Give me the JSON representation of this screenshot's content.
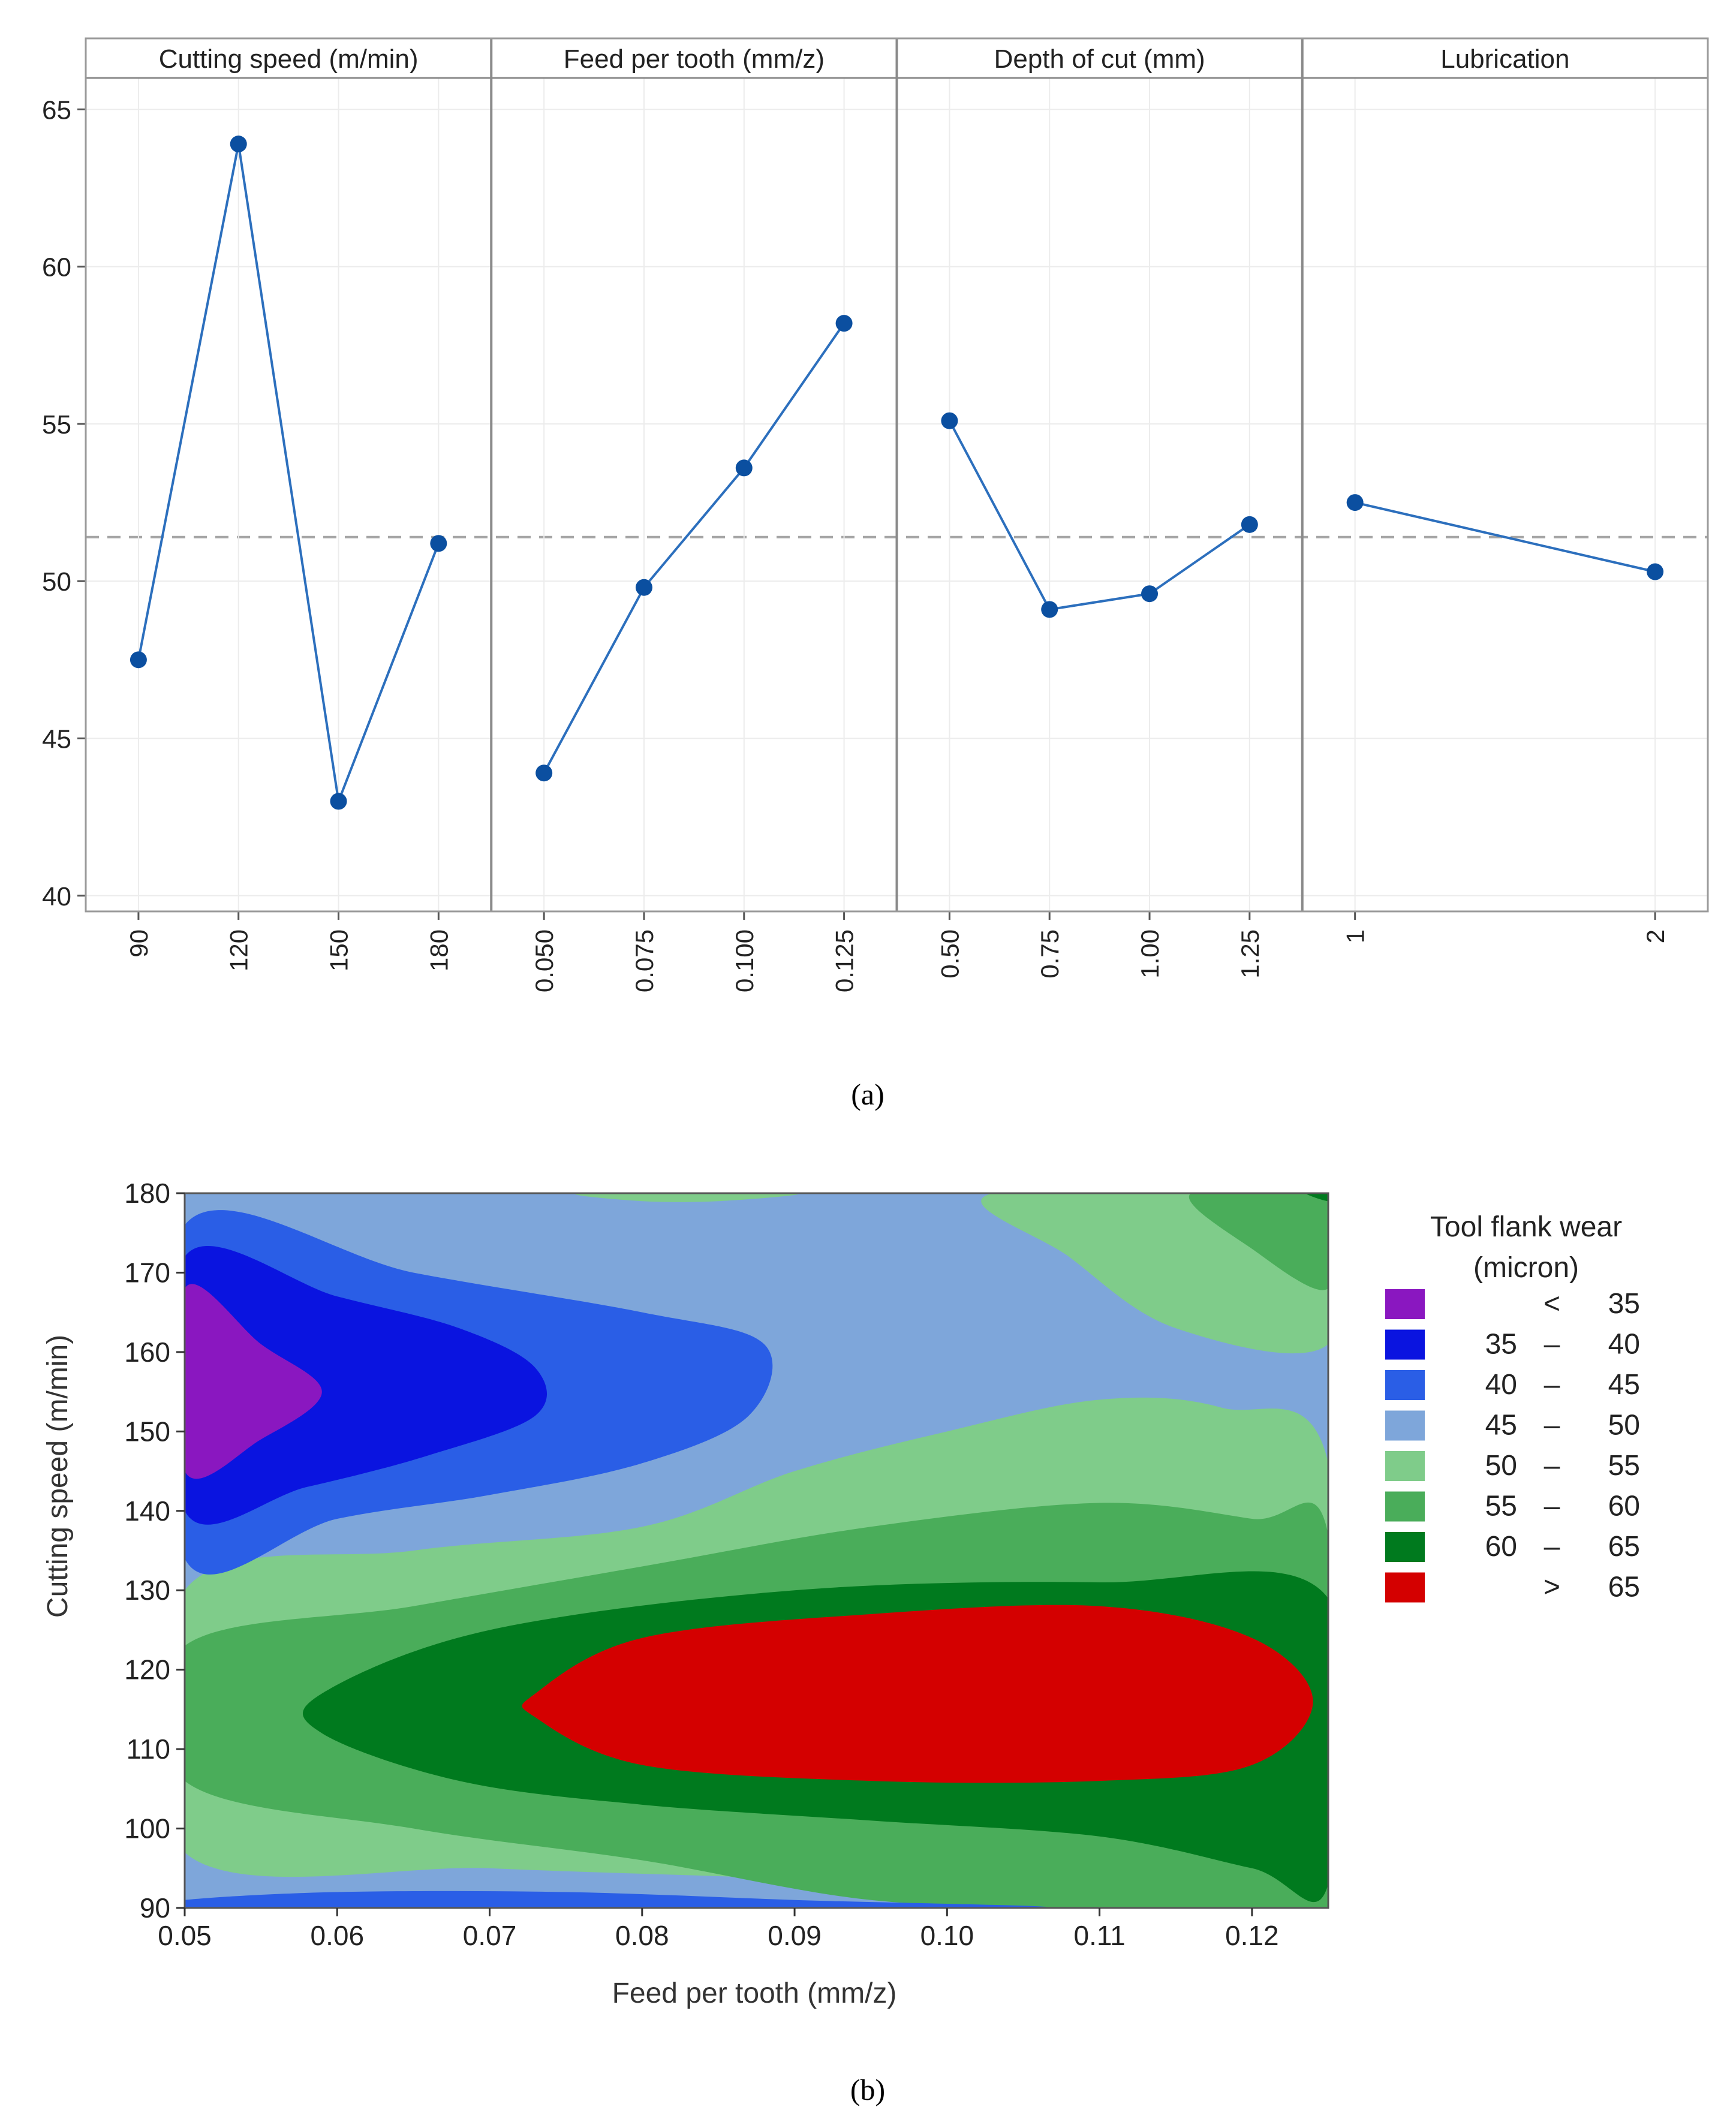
{
  "chart_data": [
    {
      "type": "line",
      "subtitle": "(a)",
      "title": "",
      "ylim": [
        39.5,
        66
      ],
      "yticks": [
        40,
        45,
        50,
        55,
        60,
        65
      ],
      "grand_mean": 51.4,
      "panels": [
        {
          "title": "Cutting speed (m/min)",
          "categories": [
            "90",
            "120",
            "150",
            "180"
          ],
          "values": [
            47.5,
            63.9,
            43.0,
            51.2
          ]
        },
        {
          "title": "Feed per tooth (mm/z)",
          "categories": [
            "0.050",
            "0.075",
            "0.100",
            "0.125"
          ],
          "values": [
            43.9,
            49.8,
            53.6,
            58.2
          ]
        },
        {
          "title": "Depth of cut (mm)",
          "categories": [
            "0.50",
            "0.75",
            "1.00",
            "1.25"
          ],
          "values": [
            55.1,
            49.1,
            49.6,
            51.8
          ]
        },
        {
          "title": "Lubrication",
          "categories": [
            "1",
            "2"
          ],
          "values": [
            52.5,
            50.3
          ]
        }
      ],
      "colors": {
        "line": "#2c6fbd",
        "marker": "#0b4fa0",
        "mean": "#a6a6a6",
        "grid": "#ececec",
        "header_bg": "#ffffff"
      }
    },
    {
      "type": "contour",
      "subtitle": "(b)",
      "xlabel": "Feed per tooth (mm/z)",
      "ylabel": "Cutting speed (m/min)",
      "xlim": [
        0.05,
        0.125
      ],
      "ylim": [
        90,
        180
      ],
      "xticks": [
        "0.05",
        "0.06",
        "0.07",
        "0.08",
        "0.09",
        "0.10",
        "0.11",
        "0.12"
      ],
      "xtick_values": [
        0.05,
        0.06,
        0.07,
        0.08,
        0.09,
        0.1,
        0.11,
        0.12
      ],
      "yticks": [
        "90",
        "100",
        "110",
        "120",
        "130",
        "140",
        "150",
        "160",
        "170",
        "180"
      ],
      "ytick_values": [
        90,
        100,
        110,
        120,
        130,
        140,
        150,
        160,
        170,
        180
      ],
      "legend": {
        "title_line1": "Tool flank wear",
        "title_line2": "(micron)",
        "position": "right",
        "entries": [
          {
            "from": "<",
            "sep": "",
            "to": "35",
            "color": "#8a17c0"
          },
          {
            "from": "35",
            "sep": "–",
            "to": "40",
            "color": "#0a14e0"
          },
          {
            "from": "40",
            "sep": "–",
            "to": "45",
            "color": "#2a5ee6"
          },
          {
            "from": "45",
            "sep": "–",
            "to": "50",
            "color": "#7ea6da"
          },
          {
            "from": "50",
            "sep": "–",
            "to": "55",
            "color": "#7fcc8a"
          },
          {
            "from": "55",
            "sep": "–",
            "to": "60",
            "color": "#4aad5a"
          },
          {
            "from": "60",
            "sep": "–",
            "to": "65",
            "color": "#007a1e"
          },
          {
            "from": ">",
            "sep": "",
            "to": "65",
            "color": "#d40000"
          }
        ]
      },
      "regions": [
        {
          "band": "45-50",
          "outline": [
            [
              0.05,
              180
            ],
            [
              0.125,
              180
            ],
            [
              0.125,
              90
            ],
            [
              0.05,
              90
            ]
          ]
        },
        {
          "band": "50-55",
          "outline": [
            [
              0.05,
              130
            ],
            [
              0.065,
              135
            ],
            [
              0.08,
              138
            ],
            [
              0.09,
              145
            ],
            [
              0.1,
              150
            ],
            [
              0.11,
              154
            ],
            [
              0.118,
              153
            ],
            [
              0.125,
              146
            ],
            [
              0.125,
              92
            ],
            [
              0.115,
              92
            ],
            [
              0.1,
              93
            ],
            [
              0.085,
              94
            ],
            [
              0.07,
              95
            ],
            [
              0.05,
              97
            ]
          ]
        },
        {
          "band": "55-60",
          "outline": [
            [
              0.05,
              123
            ],
            [
              0.065,
              128
            ],
            [
              0.08,
              133
            ],
            [
              0.095,
              138
            ],
            [
              0.11,
              141
            ],
            [
              0.12,
              139
            ],
            [
              0.125,
              137
            ],
            [
              0.125,
              90
            ],
            [
              0.11,
              90
            ],
            [
              0.095,
              91
            ],
            [
              0.08,
              96
            ],
            [
              0.065,
              100
            ],
            [
              0.05,
              106
            ]
          ]
        },
        {
          "band": "60-65",
          "outline": [
            [
              0.059,
              117
            ],
            [
              0.07,
              125
            ],
            [
              0.09,
              130
            ],
            [
              0.11,
              131
            ],
            [
              0.125,
              129
            ],
            [
              0.125,
              93
            ],
            [
              0.12,
              95
            ],
            [
              0.11,
              99
            ],
            [
              0.095,
              101
            ],
            [
              0.08,
              103
            ],
            [
              0.068,
              106
            ],
            [
              0.059,
              112
            ]
          ]
        },
        {
          "band": ">65",
          "outline": [
            [
              0.073,
              117
            ],
            [
              0.08,
              124
            ],
            [
              0.095,
              127
            ],
            [
              0.11,
              128
            ],
            [
              0.12,
              124
            ],
            [
              0.124,
              116
            ],
            [
              0.12,
              108
            ],
            [
              0.11,
              106
            ],
            [
              0.095,
              106
            ],
            [
              0.08,
              108
            ],
            [
              0.073,
              114
            ]
          ]
        },
        {
          "band": "40-45",
          "outline": [
            [
              0.05,
              176
            ],
            [
              0.065,
              170
            ],
            [
              0.08,
              165
            ],
            [
              0.088,
              161
            ],
            [
              0.087,
              152
            ],
            [
              0.08,
              146
            ],
            [
              0.07,
              142
            ],
            [
              0.06,
              139
            ],
            [
              0.05,
              134
            ]
          ]
        },
        {
          "band": "35-40",
          "outline": [
            [
              0.05,
              172
            ],
            [
              0.06,
              167
            ],
            [
              0.068,
              163
            ],
            [
              0.073,
              158
            ],
            [
              0.073,
              152
            ],
            [
              0.066,
              147
            ],
            [
              0.058,
              143
            ],
            [
              0.05,
              140
            ]
          ]
        },
        {
          "band": "<35",
          "outline": [
            [
              0.05,
              168
            ],
            [
              0.055,
              161
            ],
            [
              0.059,
              155
            ],
            [
              0.055,
              149
            ],
            [
              0.05,
              145
            ]
          ]
        },
        {
          "band": "50-55",
          "outline": [
            [
              0.076,
              180
            ],
            [
              0.09,
              180
            ],
            [
              0.085,
              179
            ],
            [
              0.08,
              179
            ]
          ]
        },
        {
          "band": "50-55",
          "outline": [
            [
              0.103,
              180
            ],
            [
              0.125,
              180
            ],
            [
              0.125,
              161
            ],
            [
              0.115,
              163
            ],
            [
              0.108,
              172
            ]
          ]
        },
        {
          "band": "55-60",
          "outline": [
            [
              0.116,
              180
            ],
            [
              0.125,
              180
            ],
            [
              0.125,
              168
            ],
            [
              0.12,
              173
            ]
          ]
        },
        {
          "band": "60-65",
          "outline": [
            [
              0.1235,
              180
            ],
            [
              0.125,
              180
            ],
            [
              0.125,
              179
            ]
          ]
        },
        {
          "band": "40-45",
          "outline": [
            [
              0.05,
              91
            ],
            [
              0.06,
              92
            ],
            [
              0.075,
              92
            ],
            [
              0.09,
              91
            ],
            [
              0.105,
              90
            ],
            [
              0.05,
              90
            ]
          ]
        }
      ]
    }
  ]
}
